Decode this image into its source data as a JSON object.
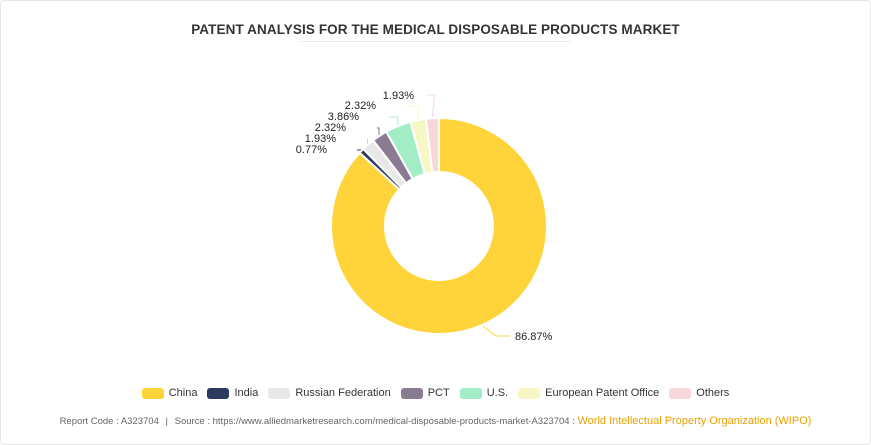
{
  "chart_data": {
    "type": "pie",
    "variant": "donut",
    "title": "PATENT ANALYSIS FOR THE MEDICAL DISPOSABLE PRODUCTS MARKET",
    "categories": [
      "China",
      "India",
      "Russian Federation",
      "PCT",
      "U.S.",
      "European Patent Office",
      "Others"
    ],
    "values": [
      86.87,
      0.77,
      1.93,
      2.32,
      3.86,
      2.32,
      1.93
    ],
    "labels": [
      "86.87%",
      "0.77%",
      "1.93%",
      "2.32%",
      "3.86%",
      "2.32%",
      "1.93%"
    ],
    "colors": [
      "#FFD43B",
      "#2B3A5E",
      "#E8E8E8",
      "#8A7A92",
      "#A3EDC6",
      "#F6F7C4",
      "#F8D7D9"
    ],
    "legend_position": "bottom"
  },
  "footer": {
    "report_code": "Report Code : A323704",
    "separator": "|",
    "source": "Source : https://www.alliedmarketresearch.com/medical-disposable-products-market-A323704 :",
    "source_org": "World Intellectual Property Organization (WIPO)"
  }
}
